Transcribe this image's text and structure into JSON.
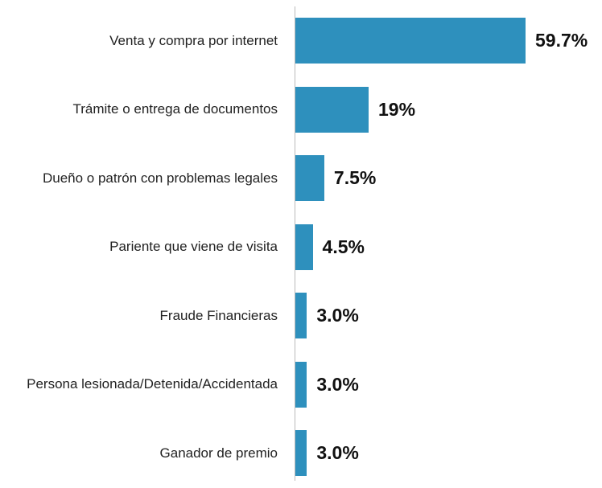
{
  "chart_data": {
    "type": "bar",
    "orientation": "horizontal",
    "categories": [
      "Venta y compra por internet",
      "Trámite o entrega de documentos",
      "Dueño o patrón con problemas legales",
      "Pariente que viene de visita",
      "Fraude Financieras",
      "Persona lesionada/Detenida/Accidentada",
      "Ganador de premio"
    ],
    "values": [
      59.7,
      19,
      7.5,
      4.5,
      3.0,
      3.0,
      3.0
    ],
    "value_labels": [
      "59.7%",
      "19%",
      "7.5%",
      "4.5%",
      "3.0%",
      "3.0%",
      "3.0%"
    ],
    "color": "#2e90bd"
  }
}
